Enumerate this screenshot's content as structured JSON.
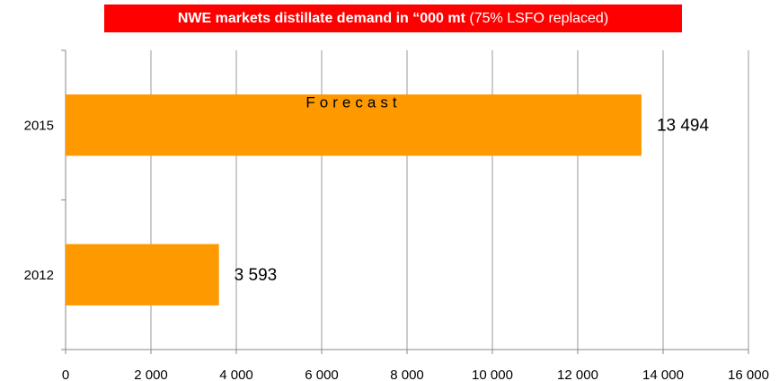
{
  "title": {
    "main": "NWE markets distillate demand in “000 mt",
    "note": "(75% LSFO replaced)"
  },
  "colors": {
    "title_background": "#ff0000",
    "title_text": "#ffffff",
    "bar": "#ff9900",
    "grid": "#999999",
    "axis": "#888888",
    "text": "#000000"
  },
  "chart_data": {
    "type": "bar",
    "orientation": "horizontal",
    "title": "NWE markets distillate demand in “000 mt (75% LSFO replaced)",
    "categories": [
      "2015",
      "2012"
    ],
    "values": [
      13494,
      3593
    ],
    "value_labels": [
      "13 494",
      "3 593"
    ],
    "bar_annotations": [
      "Forecast",
      ""
    ],
    "xlim": [
      0,
      16000
    ],
    "x_ticks": [
      0,
      2000,
      4000,
      6000,
      8000,
      10000,
      12000,
      14000,
      16000
    ],
    "x_tick_labels": [
      "0",
      "2 000",
      "4 000",
      "6 000",
      "8 000",
      "10 000",
      "12 000",
      "14 000",
      "16 000"
    ],
    "xlabel": "",
    "ylabel": "",
    "grid": "vertical",
    "legend": "none"
  }
}
